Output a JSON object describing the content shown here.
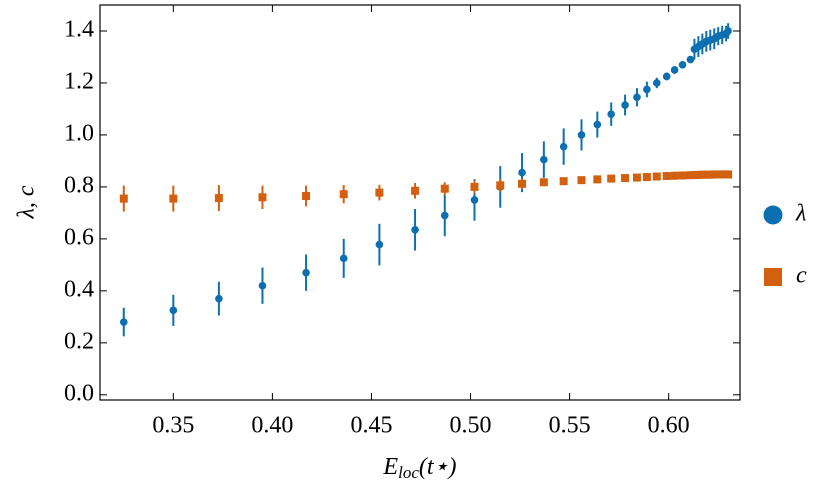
{
  "chart_data": {
    "type": "scatter",
    "xlabel": [
      "E",
      "loc",
      "(t⋆)"
    ],
    "ylabel": "λ, c",
    "x": [
      0.325,
      0.35,
      0.373,
      0.395,
      0.417,
      0.436,
      0.454,
      0.472,
      0.487,
      0.502,
      0.515,
      0.526,
      0.537,
      0.547,
      0.556,
      0.564,
      0.571,
      0.578,
      0.584,
      0.589,
      0.594,
      0.599,
      0.603,
      0.607,
      0.611,
      0.613,
      0.615,
      0.617,
      0.619,
      0.621,
      0.623,
      0.625,
      0.627,
      0.629,
      0.63
    ],
    "series": [
      {
        "name": "λ",
        "color": "#0C6FB0",
        "marker": "circle",
        "values": [
          0.28,
          0.325,
          0.37,
          0.42,
          0.47,
          0.525,
          0.578,
          0.635,
          0.69,
          0.75,
          0.8,
          0.855,
          0.905,
          0.955,
          1.0,
          1.04,
          1.08,
          1.115,
          1.145,
          1.175,
          1.2,
          1.225,
          1.25,
          1.27,
          1.29,
          1.33,
          1.34,
          1.35,
          1.36,
          1.365,
          1.37,
          1.38,
          1.385,
          1.39,
          1.4
        ],
        "errors": [
          0.055,
          0.06,
          0.065,
          0.07,
          0.07,
          0.075,
          0.08,
          0.08,
          0.08,
          0.08,
          0.08,
          0.075,
          0.07,
          0.07,
          0.06,
          0.05,
          0.045,
          0.04,
          0.035,
          0.03,
          0.02,
          0.015,
          0.015,
          0.01,
          0.01,
          0.04,
          0.04,
          0.04,
          0.04,
          0.04,
          0.04,
          0.035,
          0.035,
          0.03,
          0.03
        ]
      },
      {
        "name": "c",
        "color": "#D2600F",
        "marker": "square",
        "values": [
          0.755,
          0.755,
          0.757,
          0.76,
          0.765,
          0.772,
          0.778,
          0.785,
          0.793,
          0.8,
          0.806,
          0.812,
          0.818,
          0.822,
          0.826,
          0.829,
          0.832,
          0.834,
          0.836,
          0.838,
          0.84,
          0.842,
          0.843,
          0.844,
          0.845,
          0.846,
          0.846,
          0.847,
          0.847,
          0.847,
          0.848,
          0.848,
          0.848,
          0.848,
          0.848
        ],
        "errors": [
          0.05,
          0.05,
          0.05,
          0.045,
          0.04,
          0.035,
          0.03,
          0.03,
          0.025,
          0.025,
          0.025,
          0.02,
          0.01,
          0.005,
          0.005,
          0.005,
          0.005,
          0.005,
          0.005,
          0.005,
          0.005,
          0.005,
          0.005,
          0.005,
          0.005,
          0.005,
          0.005,
          0.005,
          0.005,
          0.005,
          0.005,
          0.005,
          0.005,
          0.005,
          0.005
        ]
      }
    ],
    "xlim": [
      0.313,
      0.636
    ],
    "ylim": [
      -0.02,
      1.5
    ],
    "xticks": [
      {
        "value": 0.35,
        "label": "0.35"
      },
      {
        "value": 0.4,
        "label": "0.40"
      },
      {
        "value": 0.45,
        "label": "0.45"
      },
      {
        "value": 0.5,
        "label": "0.50"
      },
      {
        "value": 0.55,
        "label": "0.55"
      },
      {
        "value": 0.6,
        "label": "0.60"
      }
    ],
    "yticks": [
      {
        "value": 0,
        "label": "0.0"
      },
      {
        "value": 0.2,
        "label": "0.2"
      },
      {
        "value": 0.4,
        "label": "0.4"
      },
      {
        "value": 0.6,
        "label": "0.6"
      },
      {
        "value": 0.8,
        "label": "0.8"
      },
      {
        "value": 1.0,
        "label": "1.0"
      },
      {
        "value": 1.2,
        "label": "1.2"
      },
      {
        "value": 1.4,
        "label": "1.4"
      }
    ],
    "legend": "right"
  }
}
